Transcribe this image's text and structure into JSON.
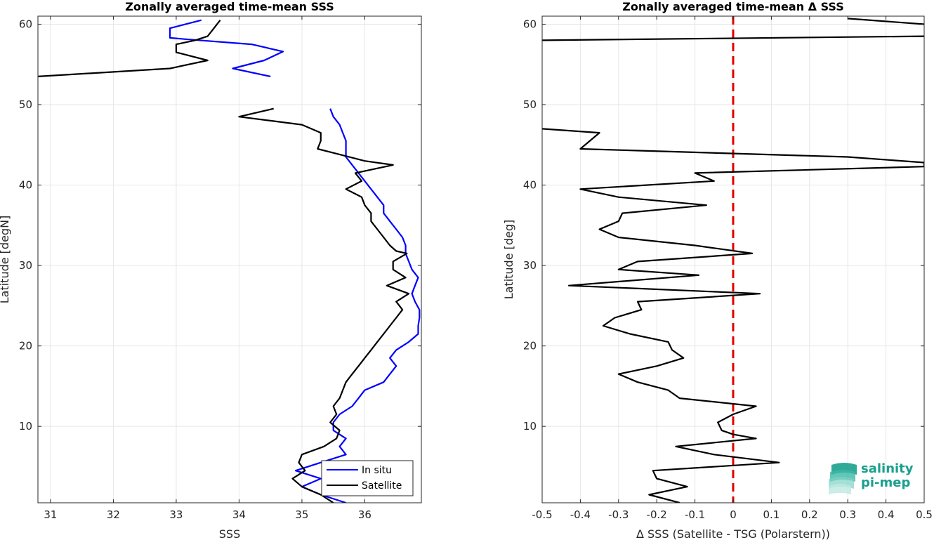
{
  "chart_data": [
    {
      "type": "line",
      "title": "Zonally averaged time-mean SSS",
      "xlabel": "SSS",
      "ylabel": "Latitude [degN]",
      "xlim": [
        30.8,
        36.9
      ],
      "ylim": [
        0.5,
        61
      ],
      "xticks": [
        "31",
        "32",
        "33",
        "34",
        "35",
        "36"
      ],
      "yticks": [
        "10",
        "20",
        "30",
        "40",
        "50",
        "60"
      ],
      "grid": true,
      "legend": "bottom-right",
      "series": [
        {
          "name": "In situ",
          "color": "#0000ff",
          "segments": [
            [
              [
                33.4,
                60.5
              ],
              [
                32.9,
                59.5
              ],
              [
                32.9,
                58.3
              ],
              [
                33.2,
                58.1
              ],
              [
                34.2,
                57.5
              ],
              [
                34.7,
                56.6
              ],
              [
                34.4,
                55.5
              ],
              [
                33.9,
                54.5
              ],
              [
                34.5,
                53.5
              ]
            ],
            [
              [
                35.45,
                49.5
              ],
              [
                35.5,
                48.5
              ],
              [
                35.6,
                47.5
              ],
              [
                35.65,
                46.5
              ],
              [
                35.7,
                45.5
              ],
              [
                35.7,
                44.5
              ],
              [
                35.7,
                43.5
              ],
              [
                35.8,
                42.5
              ],
              [
                35.9,
                41.5
              ],
              [
                36.0,
                40.5
              ],
              [
                36.1,
                39.5
              ],
              [
                36.2,
                38.5
              ],
              [
                36.3,
                37.5
              ],
              [
                36.3,
                36.5
              ],
              [
                36.4,
                35.5
              ],
              [
                36.5,
                34.5
              ],
              [
                36.6,
                33.5
              ],
              [
                36.65,
                32.5
              ],
              [
                36.65,
                31.5
              ],
              [
                36.7,
                30.5
              ],
              [
                36.75,
                29.5
              ],
              [
                36.85,
                28.5
              ],
              [
                36.8,
                27.5
              ],
              [
                36.75,
                26.5
              ],
              [
                36.8,
                25.5
              ],
              [
                36.87,
                24.5
              ],
              [
                36.87,
                23.5
              ],
              [
                36.85,
                22.5
              ],
              [
                36.85,
                21.5
              ],
              [
                36.7,
                20.5
              ],
              [
                36.5,
                19.5
              ],
              [
                36.4,
                18.5
              ],
              [
                36.5,
                17.5
              ],
              [
                36.4,
                16.5
              ],
              [
                36.3,
                15.5
              ],
              [
                36.0,
                14.5
              ],
              [
                35.9,
                13.5
              ],
              [
                35.8,
                12.5
              ],
              [
                35.6,
                11.5
              ],
              [
                35.5,
                10.5
              ],
              [
                35.5,
                9.5
              ],
              [
                35.7,
                8.5
              ],
              [
                35.6,
                7.5
              ],
              [
                35.7,
                6.5
              ],
              [
                35.3,
                5.5
              ],
              [
                34.9,
                4.5
              ],
              [
                35.3,
                3.5
              ],
              [
                35.0,
                2.5
              ],
              [
                35.3,
                1.5
              ],
              [
                35.7,
                0.5
              ]
            ]
          ]
        },
        {
          "name": "Satellite",
          "color": "#000000",
          "segments": [
            [
              [
                33.7,
                60.5
              ],
              [
                33.6,
                59.5
              ],
              [
                33.5,
                58.5
              ],
              [
                33.3,
                58.0
              ],
              [
                33.0,
                57.5
              ],
              [
                33.0,
                56.5
              ],
              [
                33.5,
                55.5
              ],
              [
                32.9,
                54.5
              ],
              [
                30.8,
                53.5
              ]
            ],
            [
              [
                34.55,
                49.5
              ],
              [
                34.0,
                48.5
              ],
              [
                34.5,
                48.0
              ],
              [
                35.0,
                47.5
              ],
              [
                35.3,
                46.5
              ],
              [
                35.3,
                45.5
              ],
              [
                35.25,
                44.5
              ],
              [
                35.5,
                44.0
              ],
              [
                36.0,
                43.0
              ],
              [
                36.45,
                42.5
              ],
              [
                35.85,
                41.5
              ],
              [
                35.95,
                40.5
              ],
              [
                35.7,
                39.5
              ],
              [
                35.95,
                38.5
              ],
              [
                36.0,
                37.5
              ],
              [
                36.1,
                36.5
              ],
              [
                36.1,
                35.5
              ],
              [
                36.2,
                34.5
              ],
              [
                36.3,
                33.5
              ],
              [
                36.4,
                32.5
              ],
              [
                36.5,
                31.8
              ],
              [
                36.67,
                31.5
              ],
              [
                36.45,
                30.5
              ],
              [
                36.45,
                29.5
              ],
              [
                36.65,
                28.5
              ],
              [
                36.35,
                27.5
              ],
              [
                36.7,
                26.5
              ],
              [
                36.5,
                25.5
              ],
              [
                36.6,
                24.5
              ],
              [
                36.5,
                23.5
              ],
              [
                36.4,
                22.5
              ],
              [
                36.3,
                21.5
              ],
              [
                36.2,
                20.5
              ],
              [
                36.1,
                19.5
              ],
              [
                36.0,
                18.5
              ],
              [
                35.9,
                17.5
              ],
              [
                35.8,
                16.5
              ],
              [
                35.7,
                15.5
              ],
              [
                35.65,
                14.5
              ],
              [
                35.6,
                13.5
              ],
              [
                35.5,
                12.5
              ],
              [
                35.55,
                11.5
              ],
              [
                35.45,
                10.5
              ],
              [
                35.6,
                9.5
              ],
              [
                35.55,
                8.5
              ],
              [
                35.35,
                7.5
              ],
              [
                35.0,
                6.5
              ],
              [
                34.95,
                5.5
              ],
              [
                35.05,
                4.5
              ],
              [
                34.85,
                3.5
              ],
              [
                35.0,
                2.5
              ],
              [
                35.3,
                1.5
              ],
              [
                35.5,
                0.5
              ]
            ]
          ]
        }
      ]
    },
    {
      "type": "line",
      "title": "Zonally averaged time-mean Δ SSS",
      "xlabel": "Δ SSS (Satellite - TSG (Polarstern))",
      "ylabel": "Latitude [deg]",
      "xlim": [
        -0.5,
        0.5
      ],
      "ylim": [
        0.5,
        61
      ],
      "xticks": [
        "-0.5",
        "-0.4",
        "-0.3",
        "-0.2",
        "-0.1",
        "0",
        "0.1",
        "0.2",
        "0.3",
        "0.4",
        "0.5"
      ],
      "yticks": [
        "10",
        "20",
        "30",
        "40",
        "50",
        "60"
      ],
      "grid": true,
      "reference_line": {
        "x": 0,
        "color": "#e00000",
        "style": "dashed"
      },
      "series": [
        {
          "name": "",
          "color": "#000000",
          "segments": [
            [
              [
                0.3,
                60.7
              ],
              [
                0.5,
                60.0
              ]
            ],
            [
              [
                0.5,
                58.5
              ],
              [
                -0.5,
                58.0
              ]
            ],
            [
              [
                -0.5,
                47.0
              ],
              [
                -0.35,
                46.5
              ],
              [
                -0.4,
                44.5
              ],
              [
                0.3,
                43.5
              ],
              [
                0.5,
                42.8
              ],
              [
                0.5,
                42.3
              ],
              [
                -0.1,
                41.5
              ],
              [
                -0.05,
                40.5
              ],
              [
                -0.4,
                39.5
              ],
              [
                -0.3,
                38.5
              ],
              [
                -0.07,
                37.5
              ],
              [
                -0.29,
                36.5
              ],
              [
                -0.3,
                35.5
              ],
              [
                -0.35,
                34.5
              ],
              [
                -0.3,
                33.5
              ],
              [
                -0.1,
                32.5
              ],
              [
                0.05,
                31.5
              ],
              [
                -0.25,
                30.5
              ],
              [
                -0.3,
                29.5
              ],
              [
                -0.09,
                28.8
              ],
              [
                -0.43,
                27.5
              ],
              [
                0.07,
                26.5
              ],
              [
                -0.25,
                25.5
              ],
              [
                -0.24,
                24.5
              ],
              [
                -0.31,
                23.5
              ],
              [
                -0.34,
                22.5
              ],
              [
                -0.27,
                21.5
              ],
              [
                -0.17,
                20.5
              ],
              [
                -0.16,
                19.5
              ],
              [
                -0.13,
                18.5
              ],
              [
                -0.2,
                17.5
              ],
              [
                -0.3,
                16.5
              ],
              [
                -0.25,
                15.5
              ],
              [
                -0.17,
                14.5
              ],
              [
                -0.14,
                13.5
              ],
              [
                0.06,
                12.5
              ],
              [
                0.0,
                11.5
              ],
              [
                -0.04,
                10.5
              ],
              [
                -0.03,
                9.5
              ],
              [
                0.0,
                9.0
              ],
              [
                0.06,
                8.5
              ],
              [
                -0.15,
                7.5
              ],
              [
                -0.05,
                6.5
              ],
              [
                0.12,
                5.5
              ],
              [
                -0.21,
                4.5
              ],
              [
                -0.2,
                3.5
              ],
              [
                -0.12,
                2.5
              ],
              [
                -0.22,
                1.5
              ],
              [
                -0.14,
                0.5
              ]
            ]
          ]
        }
      ]
    }
  ],
  "legend": {
    "entries": [
      "In situ",
      "Satellite"
    ]
  },
  "logo": {
    "line1": "salinity",
    "line2": "pi-mep",
    "icon": "wave-stack-icon"
  }
}
